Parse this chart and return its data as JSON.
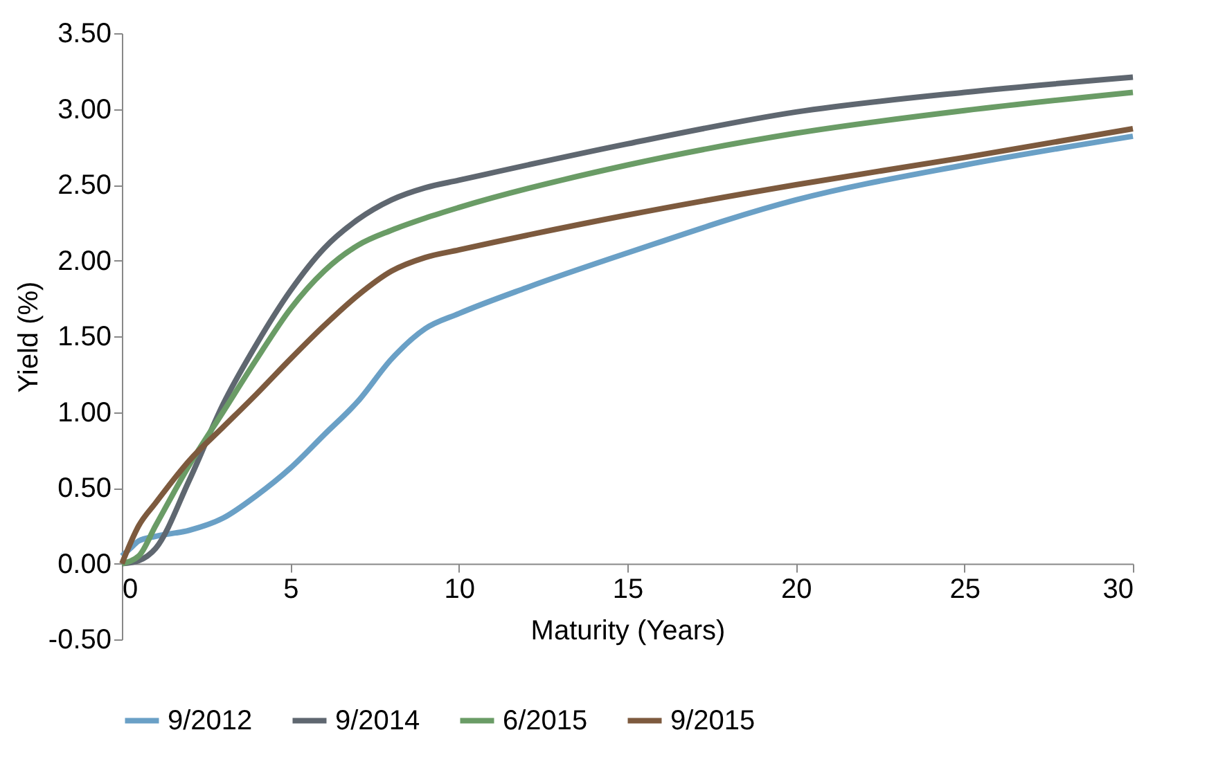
{
  "chart_data": {
    "type": "line",
    "xlabel": "Maturity (Years)",
    "ylabel": "Yield (%)",
    "xlim": [
      0,
      30
    ],
    "xticks": [
      0,
      5,
      10,
      15,
      20,
      25,
      30
    ],
    "ylim": [
      -0.5,
      3.5
    ],
    "yticks": [
      {
        "value": -0.5,
        "label": "-0.50"
      },
      {
        "value": 0,
        "label": "0.00"
      },
      {
        "value": 0.5,
        "label": "0.50"
      },
      {
        "value": 1,
        "label": "1.00"
      },
      {
        "value": 1.5,
        "label": "1.50"
      },
      {
        "value": 2,
        "label": "2.00"
      },
      {
        "value": 2.5,
        "label": "2.50"
      },
      {
        "value": 3,
        "label": "3.00"
      },
      {
        "value": 3.5,
        "label": "3.50"
      }
    ],
    "grid": false,
    "legend": "bottom",
    "marker": "none",
    "line_style": "solid",
    "series": [
      {
        "name": "9/2012",
        "color": "#6aa0c6",
        "x": [
          0,
          0.25,
          0.5,
          1,
          2,
          3,
          4,
          5,
          6,
          7,
          8,
          9,
          10,
          12,
          15,
          20,
          25,
          30
        ],
        "values": [
          0.05,
          0.1,
          0.15,
          0.18,
          0.22,
          0.3,
          0.45,
          0.63,
          0.85,
          1.07,
          1.35,
          1.55,
          1.65,
          1.82,
          2.05,
          2.4,
          2.63,
          2.82
        ]
      },
      {
        "name": "9/2014",
        "color": "#5f6770",
        "x": [
          0,
          0.5,
          1,
          2,
          3,
          4,
          5,
          6,
          7,
          8,
          9,
          10,
          15,
          20,
          25,
          30
        ],
        "values": [
          0,
          0.02,
          0.1,
          0.55,
          1.05,
          1.45,
          1.8,
          2.08,
          2.27,
          2.4,
          2.48,
          2.53,
          2.77,
          2.98,
          3.11,
          3.21
        ]
      },
      {
        "name": "6/2015",
        "color": "#6a9c66",
        "x": [
          0,
          0.5,
          1,
          2,
          3,
          4,
          5,
          6,
          7,
          8,
          9,
          10,
          15,
          20,
          25,
          30
        ],
        "values": [
          0,
          0.05,
          0.25,
          0.65,
          1.0,
          1.35,
          1.68,
          1.93,
          2.1,
          2.2,
          2.28,
          2.35,
          2.63,
          2.84,
          2.99,
          3.11
        ]
      },
      {
        "name": "9/2015",
        "color": "#7d5a3e",
        "x": [
          0,
          0.5,
          1,
          2,
          3,
          4,
          5,
          6,
          7,
          8,
          9,
          10,
          15,
          20,
          25,
          30
        ],
        "values": [
          0,
          0.25,
          0.4,
          0.68,
          0.9,
          1.12,
          1.35,
          1.57,
          1.77,
          1.93,
          2.02,
          2.07,
          2.3,
          2.5,
          2.68,
          2.87
        ]
      }
    ]
  }
}
